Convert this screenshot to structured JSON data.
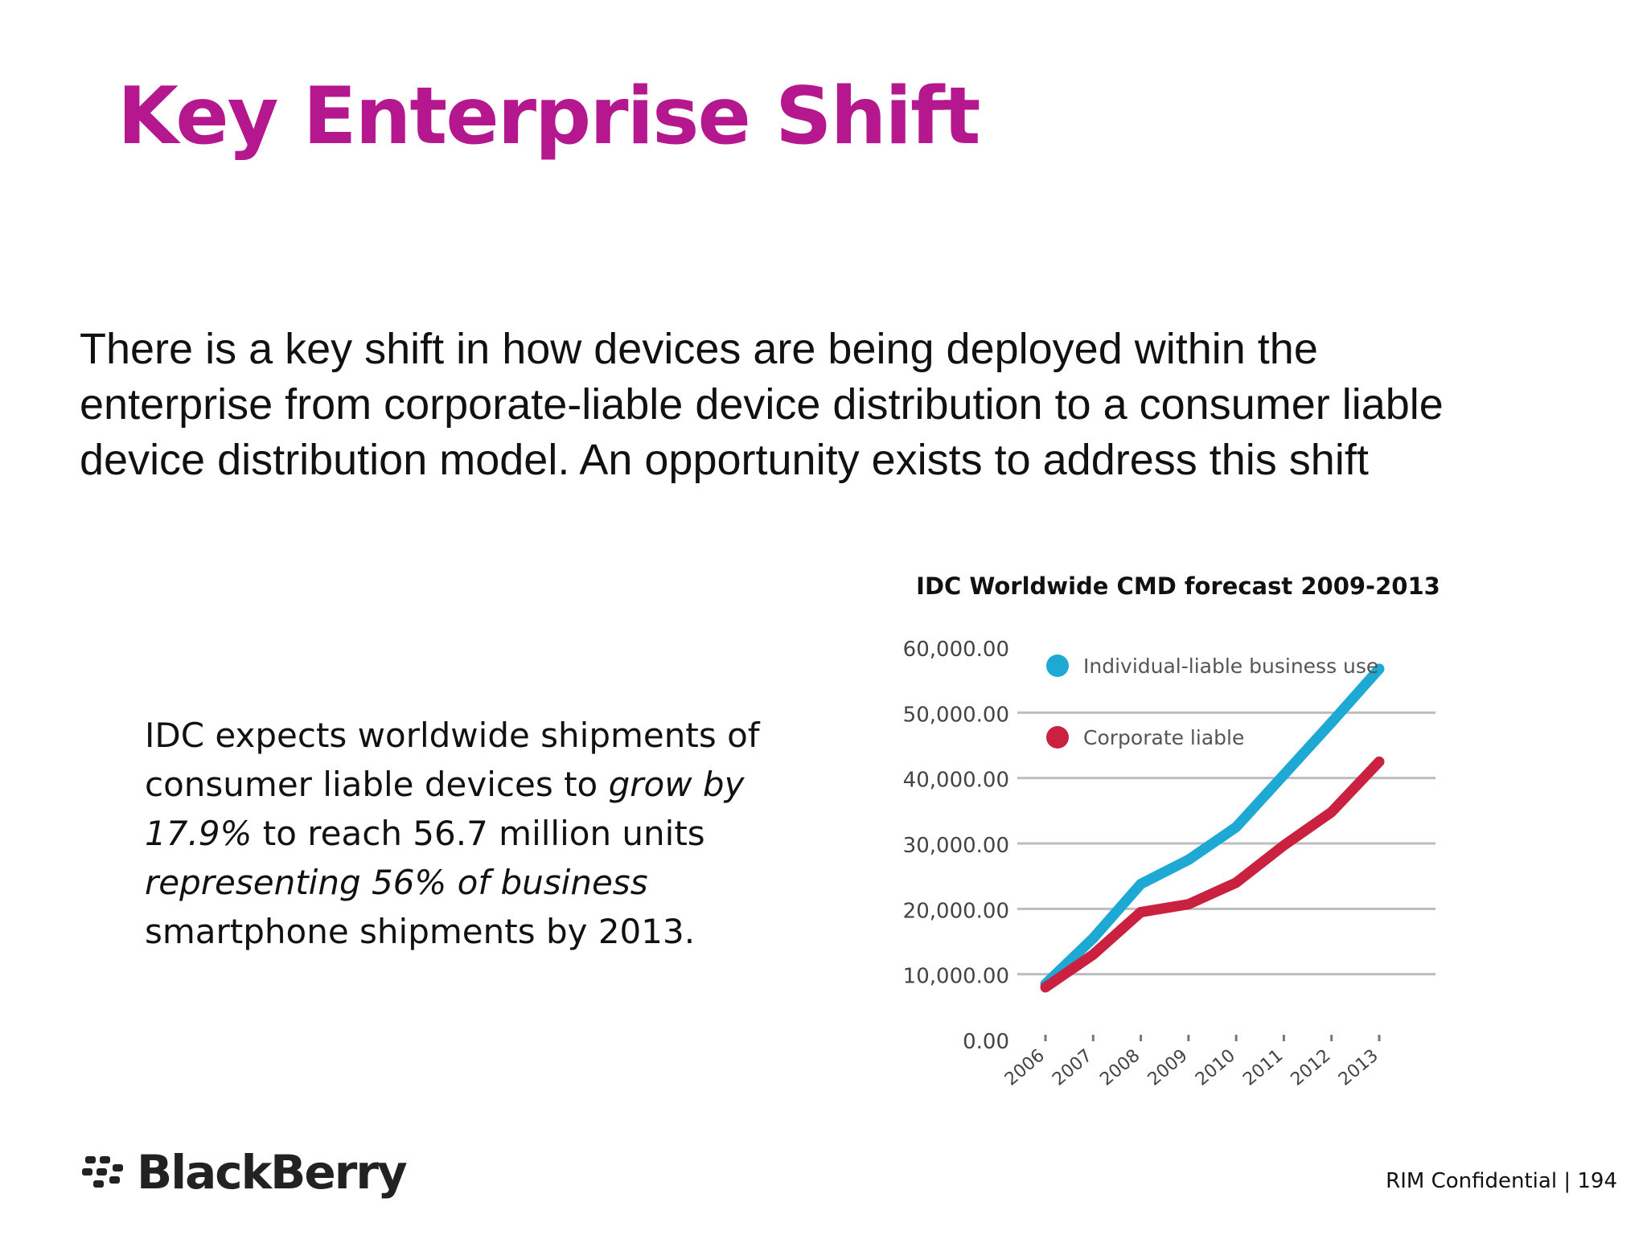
{
  "slide": {
    "title": "Key Enterprise Shift",
    "intro": "There is a key shift in how devices are being deployed within the enterprise from corporate-liable device distribution to a consumer liable device distribution model. An opportunity exists to address this shift",
    "callout": {
      "part1": "IDC expects worldwide shipments of consumer liable devices to ",
      "part2": "grow by 17.9%",
      "part3": " to reach 56.7 million units ",
      "part4": "representing 56% of business",
      "part5": " smartphone shipments by 2013."
    },
    "footer": {
      "confidential": "RIM Confidential",
      "separator": "|",
      "page_number": "194"
    },
    "logo": {
      "text": "BlackBerry"
    }
  },
  "chart_data": {
    "type": "line",
    "title": "IDC Worldwide CMD forecast 2009-2013",
    "xlabel": "",
    "ylabel": "",
    "categories": [
      "2006",
      "2007",
      "2008",
      "2009",
      "2010",
      "2011",
      "2012",
      "2013"
    ],
    "ylim": [
      0,
      60000
    ],
    "yticks": [
      "0.00",
      "10,000.00",
      "20,000.00",
      "30,000.00",
      "40,000.00",
      "50,000.00",
      "60,000.00"
    ],
    "grid": true,
    "legend_position": "top-left",
    "series": [
      {
        "name": "Individual-liable business use",
        "color": "#1ea9d4",
        "values": [
          8500,
          15500,
          23800,
          27500,
          32500,
          40500,
          48500,
          56700
        ]
      },
      {
        "name": "Corporate liable",
        "color": "#c9213f",
        "values": [
          8000,
          13000,
          19500,
          20700,
          24000,
          29700,
          34800,
          42500
        ]
      }
    ]
  }
}
